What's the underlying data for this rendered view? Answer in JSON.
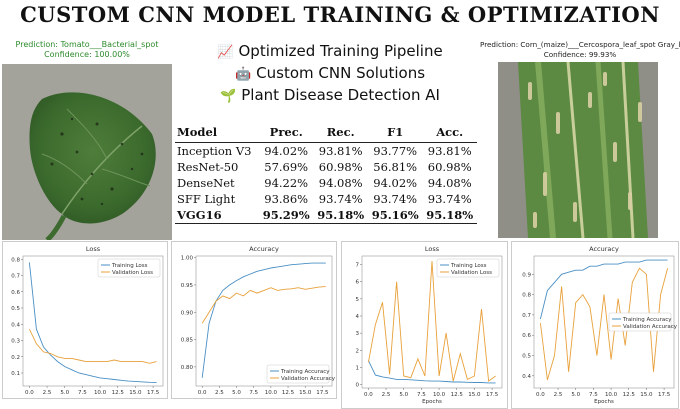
{
  "title": "CUSTOM CNN MODEL TRAINING & OPTIMIZATION",
  "left_image": {
    "prediction": "Prediction: Tomato___Bacterial_spot",
    "confidence": "Confidence: 100.00%"
  },
  "right_image": {
    "prediction": "Prediction: Corn_(maize)___Cercospora_leaf_spot Gray_leaf_spot",
    "confidence": "Confidence: 99.93%"
  },
  "features": [
    {
      "icon": "chart-increasing-icon",
      "glyph": "📈",
      "text": "Optimized Training Pipeline"
    },
    {
      "icon": "robot-icon",
      "glyph": "🤖",
      "text": "Custom CNN Solutions"
    },
    {
      "icon": "seedling-icon",
      "glyph": "🌱",
      "text": "Plant Disease Detection AI"
    }
  ],
  "metrics_table": {
    "headers": [
      "Model",
      "Prec.",
      "Rec.",
      "F1",
      "Acc."
    ],
    "rows": [
      [
        "Inception V3",
        "94.02%",
        "93.81%",
        "93.77%",
        "93.81%"
      ],
      [
        "ResNet-50",
        "57.69%",
        "60.98%",
        "56.81%",
        "60.98%"
      ],
      [
        "DenseNet",
        "94.22%",
        "94.08%",
        "94.02%",
        "94.08%"
      ],
      [
        "SFF Light",
        "93.86%",
        "93.74%",
        "93.74%",
        "93.74%"
      ],
      [
        "VGG16",
        "95.29%",
        "95.18%",
        "95.16%",
        "95.18%"
      ]
    ],
    "highlight_row": 4
  },
  "colors": {
    "train": "#4a8fc4",
    "val": "#e8a13a",
    "green_text": "#2c8a2c"
  },
  "chart_data": [
    {
      "type": "line",
      "title": "Loss",
      "x": [
        0,
        1,
        2,
        3,
        4,
        5,
        6,
        7,
        8,
        9,
        10,
        11,
        12,
        13,
        14,
        15,
        16,
        17,
        18
      ],
      "xticks": [
        "0.0",
        "2.5",
        "5.0",
        "7.5",
        "10.0",
        "12.5",
        "15.0",
        "17.5"
      ],
      "xtick_values": [
        0,
        2.5,
        5,
        7.5,
        10,
        12.5,
        15,
        17.5
      ],
      "yticks": [
        "0.1",
        "0.2",
        "0.3",
        "0.4",
        "0.5",
        "0.6",
        "0.7",
        "0.8"
      ],
      "ytick_values": [
        0.1,
        0.2,
        0.3,
        0.4,
        0.5,
        0.6,
        0.7,
        0.8
      ],
      "xlim": [
        -0.9,
        18.9
      ],
      "ylim": [
        0.02,
        0.82
      ],
      "xlabel": "",
      "legend": "top-right",
      "series": [
        {
          "name": "Training Loss",
          "color": "#4a8fc4",
          "values": [
            0.78,
            0.37,
            0.26,
            0.21,
            0.17,
            0.14,
            0.12,
            0.1,
            0.09,
            0.08,
            0.07,
            0.065,
            0.06,
            0.055,
            0.05,
            0.048,
            0.045,
            0.043,
            0.042
          ]
        },
        {
          "name": "Validation Loss",
          "color": "#e8a13a",
          "values": [
            0.37,
            0.28,
            0.23,
            0.22,
            0.2,
            0.19,
            0.19,
            0.18,
            0.17,
            0.17,
            0.17,
            0.17,
            0.18,
            0.17,
            0.17,
            0.17,
            0.17,
            0.16,
            0.17
          ]
        }
      ]
    },
    {
      "type": "line",
      "title": "Accuracy",
      "x": [
        0,
        1,
        2,
        3,
        4,
        5,
        6,
        7,
        8,
        9,
        10,
        11,
        12,
        13,
        14,
        15,
        16,
        17,
        18
      ],
      "xticks": [
        "0.0",
        "2.5",
        "5.0",
        "7.5",
        "10.0",
        "12.5",
        "15.0",
        "17.5"
      ],
      "xtick_values": [
        0,
        2.5,
        5,
        7.5,
        10,
        12.5,
        15,
        17.5
      ],
      "yticks": [
        "0.80",
        "0.85",
        "0.90",
        "0.95",
        "1.00"
      ],
      "ytick_values": [
        0.8,
        0.85,
        0.9,
        0.95,
        1.0
      ],
      "xlim": [
        -0.9,
        18.9
      ],
      "ylim": [
        0.765,
        1.003
      ],
      "xlabel": "",
      "legend": "bottom-right",
      "series": [
        {
          "name": "Training Accuracy",
          "color": "#4a8fc4",
          "values": [
            0.78,
            0.88,
            0.92,
            0.94,
            0.95,
            0.958,
            0.965,
            0.97,
            0.975,
            0.978,
            0.981,
            0.983,
            0.985,
            0.987,
            0.988,
            0.989,
            0.99,
            0.99,
            0.99
          ]
        },
        {
          "name": "Validation Accuracy",
          "color": "#e8a13a",
          "values": [
            0.88,
            0.9,
            0.92,
            0.93,
            0.925,
            0.935,
            0.93,
            0.94,
            0.935,
            0.94,
            0.945,
            0.94,
            0.942,
            0.943,
            0.945,
            0.942,
            0.944,
            0.946,
            0.947
          ]
        }
      ]
    },
    {
      "type": "line",
      "title": "Loss",
      "x": [
        0,
        1,
        2,
        3,
        4,
        5,
        6,
        7,
        8,
        9,
        10,
        11,
        12,
        13,
        14,
        15,
        16,
        17,
        18
      ],
      "xticks": [
        "0.0",
        "2.5",
        "5.0",
        "7.5",
        "10.0",
        "12.5",
        "15.0",
        "17.5"
      ],
      "xtick_values": [
        0,
        2.5,
        5,
        7.5,
        10,
        12.5,
        15,
        17.5
      ],
      "yticks": [
        "0",
        "1",
        "2",
        "3",
        "4",
        "5",
        "6",
        "7"
      ],
      "ytick_values": [
        0,
        1,
        2,
        3,
        4,
        5,
        6,
        7
      ],
      "xlim": [
        -0.9,
        18.9
      ],
      "ylim": [
        -0.2,
        7.5
      ],
      "xlabel": "Epochs",
      "legend": "top-right",
      "series": [
        {
          "name": "Training Loss",
          "color": "#4a8fc4",
          "values": [
            1.4,
            0.55,
            0.45,
            0.38,
            0.3,
            0.3,
            0.28,
            0.25,
            0.22,
            0.2,
            0.2,
            0.18,
            0.15,
            0.15,
            0.13,
            0.12,
            0.12,
            0.1,
            0.1
          ]
        },
        {
          "name": "Validation Loss",
          "color": "#e8a13a",
          "values": [
            1.3,
            3.5,
            4.8,
            0.6,
            6.0,
            0.5,
            0.4,
            1.5,
            0.5,
            7.2,
            0.5,
            3.0,
            0.2,
            1.8,
            0.3,
            0.5,
            4.4,
            0.2,
            0.5
          ]
        }
      ]
    },
    {
      "type": "line",
      "title": "Accuracy",
      "x": [
        0,
        1,
        2,
        3,
        4,
        5,
        6,
        7,
        8,
        9,
        10,
        11,
        12,
        13,
        14,
        15,
        16,
        17,
        18
      ],
      "xticks": [
        "0.0",
        "2.5",
        "5.0",
        "7.5",
        "10.0",
        "12.5",
        "15.0",
        "17.5"
      ],
      "xtick_values": [
        0,
        2.5,
        5,
        7.5,
        10,
        12.5,
        15,
        17.5
      ],
      "yticks": [
        "0.4",
        "0.5",
        "0.6",
        "0.7",
        "0.8",
        "0.9"
      ],
      "ytick_values": [
        0.4,
        0.5,
        0.6,
        0.7,
        0.8,
        0.9
      ],
      "xlim": [
        -0.9,
        18.9
      ],
      "ylim": [
        0.34,
        0.99
      ],
      "xlabel": "Epochs",
      "legend": "center-right",
      "series": [
        {
          "name": "Training Accuracy",
          "color": "#4a8fc4",
          "values": [
            0.68,
            0.82,
            0.86,
            0.9,
            0.91,
            0.92,
            0.92,
            0.94,
            0.94,
            0.95,
            0.95,
            0.95,
            0.96,
            0.96,
            0.96,
            0.97,
            0.97,
            0.97,
            0.97
          ]
        },
        {
          "name": "Validation Accuracy",
          "color": "#e8a13a",
          "values": [
            0.66,
            0.38,
            0.5,
            0.84,
            0.42,
            0.76,
            0.8,
            0.74,
            0.5,
            0.8,
            0.48,
            0.78,
            0.55,
            0.86,
            0.93,
            0.9,
            0.42,
            0.8,
            0.93
          ]
        }
      ]
    }
  ]
}
